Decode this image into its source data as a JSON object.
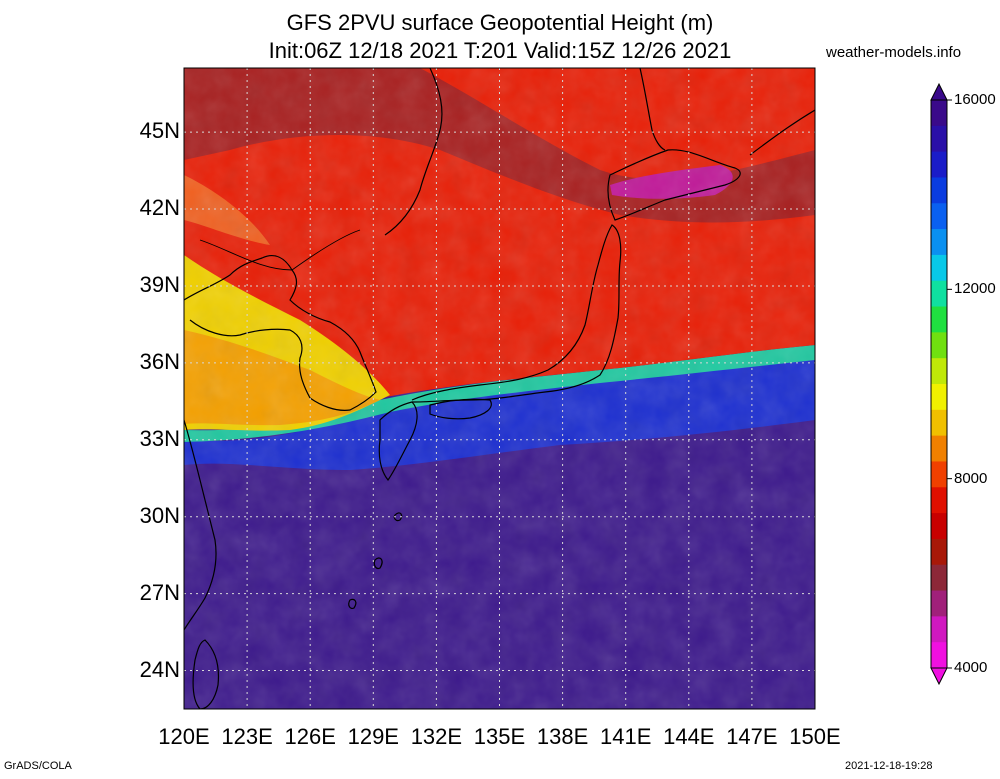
{
  "header": {
    "title_line1": "GFS 2PVU surface Geopotential Height (m)",
    "title_line2": "Init:06Z 12/18 2021 T:201 Valid:15Z 12/26 2021",
    "credit": "weather-models.info"
  },
  "map": {
    "lat_labels": [
      "45N",
      "42N",
      "39N",
      "36N",
      "33N",
      "30N",
      "27N",
      "24N"
    ],
    "lon_labels": [
      "120E",
      "123E",
      "126E",
      "129E",
      "132E",
      "135E",
      "138E",
      "141E",
      "144E",
      "147E",
      "150E"
    ],
    "lon_range": [
      120,
      150
    ],
    "lat_range": [
      22.5,
      47.5
    ]
  },
  "colorbar": {
    "labels": [
      "16000",
      "12000",
      "8000",
      "4000"
    ],
    "colors_top_to_bottom": [
      "#3a0a8a",
      "#2a10a8",
      "#1a1cc8",
      "#0a3ce0",
      "#0a60f0",
      "#0a90f0",
      "#08c8e8",
      "#10e0a0",
      "#20e040",
      "#70e010",
      "#c0e808",
      "#f0f000",
      "#f0c000",
      "#f08000",
      "#f04000",
      "#e01000",
      "#c80000",
      "#a81808",
      "#8c2838",
      "#a0207a",
      "#d018c0",
      "#f010e0"
    ]
  },
  "footer": {
    "left": "GrADS/COLA",
    "right": "2021-12-18-19:28"
  }
}
